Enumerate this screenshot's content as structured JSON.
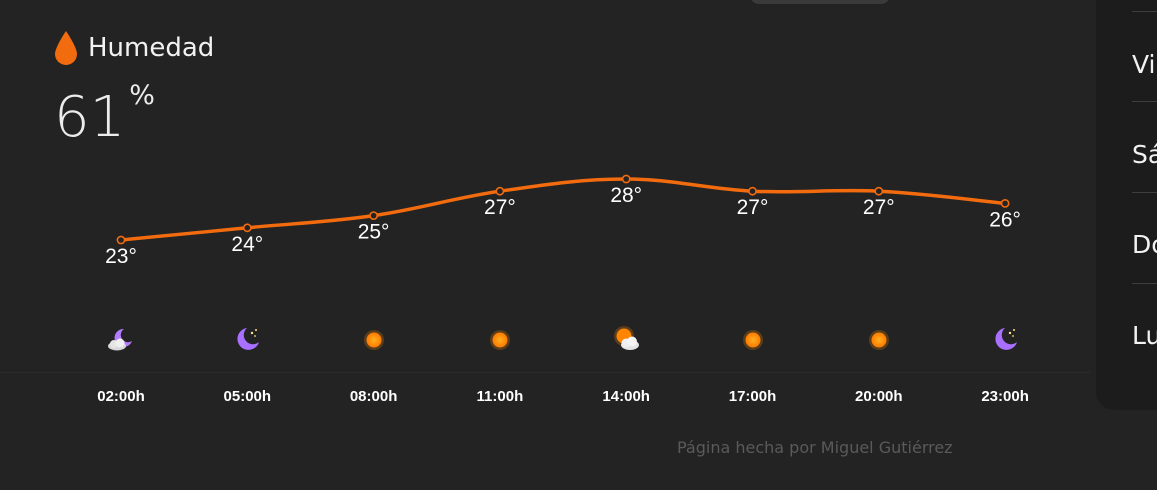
{
  "humidity": {
    "label": "Humedad",
    "value": "61",
    "unit": "%",
    "icon": "drop-icon"
  },
  "chart_data": {
    "type": "line",
    "title": "",
    "categories": [
      "02:00h",
      "05:00h",
      "08:00h",
      "11:00h",
      "14:00h",
      "17:00h",
      "20:00h",
      "23:00h"
    ],
    "values": [
      23,
      24,
      25,
      27,
      28,
      27,
      27,
      26
    ],
    "labels": [
      "23°",
      "24°",
      "25°",
      "27°",
      "28°",
      "27°",
      "27°",
      "26°"
    ],
    "icons": [
      "moon-cloud-icon",
      "moon-stars-icon",
      "sun-icon",
      "sun-icon",
      "sun-cloud-icon",
      "sun-icon",
      "sun-icon",
      "moon-stars-icon"
    ],
    "series_color": "#f26b0f",
    "ylim": [
      23,
      28
    ]
  },
  "forecast_panel": {
    "days": [
      "Vi",
      "Sá",
      "Do",
      "Lu"
    ]
  },
  "footer": {
    "credit": "Página hecha por Miguel Gutiérrez"
  }
}
